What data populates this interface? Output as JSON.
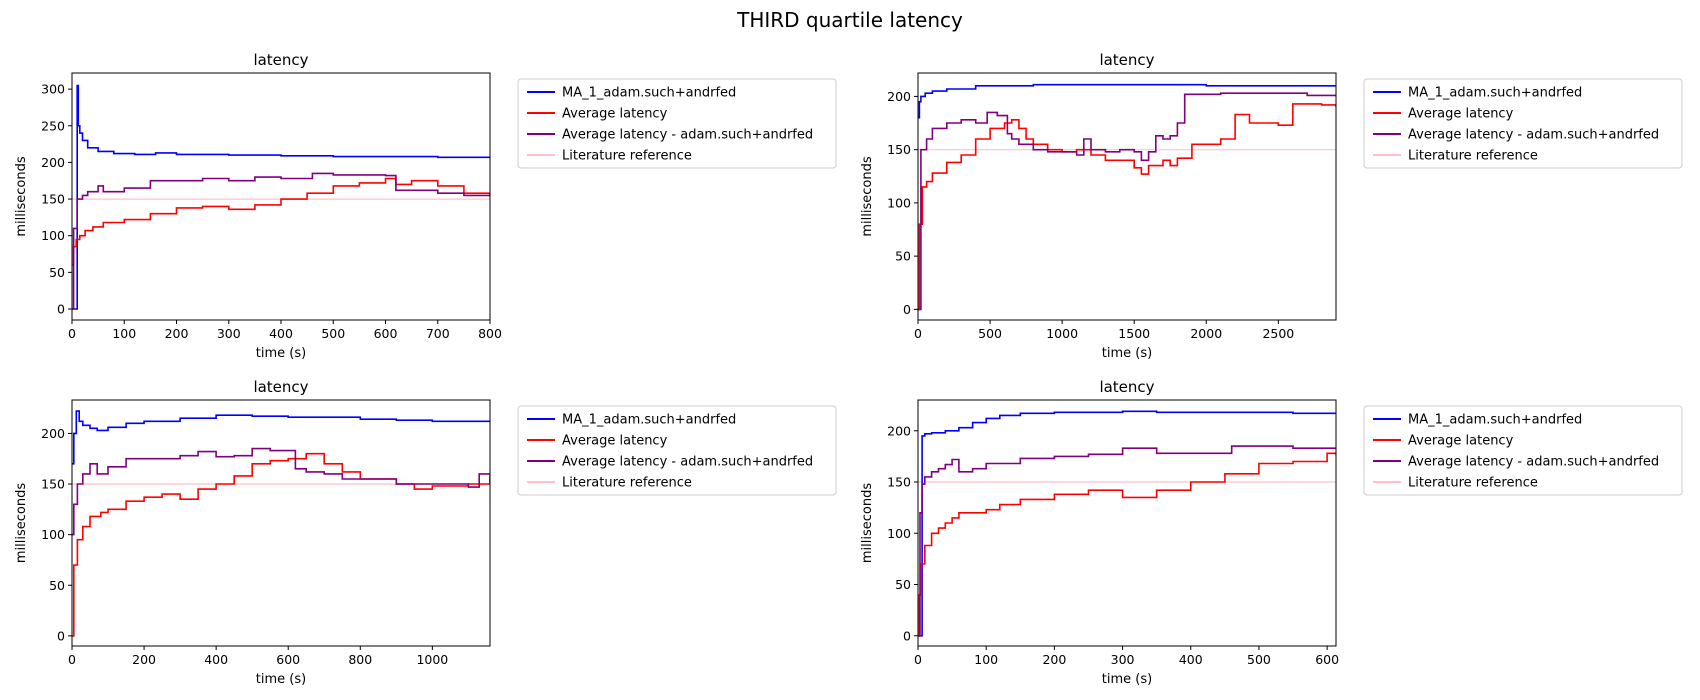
{
  "figure": {
    "title": "THIRD quartile latency"
  },
  "legend_entries": [
    {
      "label": "MA_1_adam.such+andrfed",
      "color": "#0000ff"
    },
    {
      "label": "Average latency",
      "color": "#ff0000"
    },
    {
      "label": "Average latency - adam.such+andrfed",
      "color": "#800080"
    },
    {
      "label": "Literature reference",
      "color": "#ffc0cb"
    }
  ],
  "chart_data": [
    {
      "type": "line",
      "title": "latency",
      "xlabel": "time (s)",
      "ylabel": "milliseconds",
      "xlim": [
        0,
        800
      ],
      "ylim": [
        -15,
        322
      ],
      "xticks": [
        0,
        100,
        200,
        300,
        400,
        500,
        600,
        700,
        800
      ],
      "yticks": [
        0,
        50,
        100,
        150,
        200,
        250,
        300
      ],
      "legend": "outside-right",
      "series": [
        {
          "name": "MA_1_adam.such+andrfed",
          "color": "#0000ff",
          "x": [
            0,
            8,
            10,
            12,
            15,
            20,
            30,
            50,
            80,
            120,
            160,
            200,
            300,
            400,
            500,
            600,
            700,
            800
          ],
          "y": [
            0,
            0,
            305,
            250,
            240,
            230,
            220,
            215,
            212,
            211,
            213,
            211,
            210,
            209,
            208,
            208,
            207,
            207
          ]
        },
        {
          "name": "Average latency",
          "color": "#ff0000",
          "x": [
            0,
            3,
            8,
            15,
            25,
            40,
            60,
            100,
            150,
            200,
            250,
            300,
            350,
            400,
            450,
            500,
            550,
            600,
            620,
            650,
            700,
            750,
            800
          ],
          "y": [
            60,
            85,
            95,
            100,
            107,
            112,
            118,
            122,
            130,
            138,
            140,
            136,
            142,
            150,
            158,
            168,
            172,
            178,
            170,
            175,
            168,
            158,
            155
          ]
        },
        {
          "name": "Average latency - adam.such+andrfed",
          "color": "#800080",
          "x": [
            0,
            3,
            10,
            20,
            30,
            50,
            60,
            100,
            150,
            200,
            250,
            300,
            350,
            400,
            460,
            500,
            550,
            600,
            620,
            650,
            700,
            750,
            800
          ],
          "y": [
            0,
            110,
            150,
            155,
            160,
            168,
            160,
            165,
            175,
            175,
            178,
            175,
            180,
            178,
            185,
            183,
            183,
            182,
            162,
            162,
            158,
            155,
            153
          ]
        },
        {
          "name": "Literature reference",
          "color": "#ffc0cb",
          "x": [
            0,
            800
          ],
          "y": [
            150,
            150
          ]
        }
      ]
    },
    {
      "type": "line",
      "title": "latency",
      "xlabel": "time (s)",
      "ylabel": "milliseconds",
      "xlim": [
        0,
        2900
      ],
      "ylim": [
        -10,
        222
      ],
      "xticks": [
        0,
        500,
        1000,
        1500,
        2000,
        2500
      ],
      "yticks": [
        0,
        50,
        100,
        150,
        200
      ],
      "legend": "outside-right",
      "series": [
        {
          "name": "MA_1_adam.such+andrfed",
          "color": "#0000ff",
          "x": [
            0,
            10,
            20,
            50,
            100,
            200,
            400,
            600,
            800,
            1000,
            1500,
            1800,
            2000,
            2500,
            2900
          ],
          "y": [
            180,
            195,
            200,
            203,
            205,
            207,
            210,
            210,
            211,
            211,
            211,
            211,
            210,
            210,
            209
          ]
        },
        {
          "name": "Average latency",
          "color": "#ff0000",
          "x": [
            0,
            10,
            30,
            60,
            100,
            200,
            300,
            400,
            500,
            600,
            650,
            700,
            750,
            800,
            900,
            1000,
            1100,
            1200,
            1300,
            1400,
            1500,
            1550,
            1600,
            1700,
            1750,
            1800,
            1900,
            2000,
            2050,
            2100,
            2200,
            2300,
            2400,
            2500,
            2600,
            2700,
            2800,
            2900
          ],
          "y": [
            0,
            80,
            115,
            120,
            128,
            138,
            145,
            160,
            170,
            175,
            178,
            170,
            160,
            155,
            150,
            148,
            150,
            145,
            140,
            140,
            133,
            127,
            135,
            140,
            135,
            142,
            155,
            155,
            155,
            160,
            183,
            175,
            175,
            173,
            193,
            193,
            192,
            190
          ]
        },
        {
          "name": "Average latency - adam.such+andrfed",
          "color": "#800080",
          "x": [
            0,
            20,
            60,
            100,
            200,
            300,
            400,
            480,
            550,
            620,
            650,
            700,
            800,
            900,
            1000,
            1100,
            1150,
            1200,
            1300,
            1400,
            1500,
            1550,
            1600,
            1650,
            1700,
            1750,
            1800,
            1850,
            2000,
            2100,
            2200,
            2300,
            2500,
            2700,
            2900
          ],
          "y": [
            0,
            150,
            160,
            170,
            175,
            178,
            175,
            185,
            182,
            165,
            160,
            155,
            150,
            148,
            148,
            145,
            160,
            150,
            148,
            150,
            148,
            140,
            148,
            163,
            160,
            163,
            175,
            202,
            202,
            203,
            203,
            203,
            203,
            201,
            200
          ]
        },
        {
          "name": "Literature reference",
          "color": "#ffc0cb",
          "x": [
            0,
            2900
          ],
          "y": [
            150,
            150
          ]
        }
      ]
    },
    {
      "type": "line",
      "title": "latency",
      "xlabel": "time (s)",
      "ylabel": "milliseconds",
      "xlim": [
        0,
        1160
      ],
      "ylim": [
        -10,
        233
      ],
      "xticks": [
        0,
        200,
        400,
        600,
        800,
        1000
      ],
      "yticks": [
        0,
        50,
        100,
        150,
        200
      ],
      "legend": "outside-right",
      "series": [
        {
          "name": "MA_1_adam.such+andrfed",
          "color": "#0000ff",
          "x": [
            0,
            5,
            12,
            20,
            30,
            50,
            70,
            100,
            150,
            200,
            300,
            400,
            500,
            600,
            700,
            800,
            900,
            1000,
            1160
          ],
          "y": [
            170,
            200,
            222,
            212,
            208,
            205,
            203,
            206,
            210,
            212,
            215,
            218,
            217,
            216,
            216,
            214,
            213,
            212,
            212
          ]
        },
        {
          "name": "Average latency",
          "color": "#ff0000",
          "x": [
            0,
            5,
            15,
            30,
            50,
            80,
            100,
            150,
            200,
            250,
            300,
            350,
            400,
            450,
            500,
            550,
            600,
            650,
            700,
            750,
            800,
            900,
            950,
            1000,
            1100,
            1160
          ],
          "y": [
            0,
            70,
            95,
            108,
            118,
            122,
            125,
            133,
            137,
            140,
            135,
            145,
            150,
            158,
            170,
            173,
            175,
            180,
            170,
            162,
            155,
            150,
            145,
            148,
            150,
            155
          ]
        },
        {
          "name": "Average latency - adam.such+andrfed",
          "color": "#800080",
          "x": [
            0,
            5,
            15,
            30,
            50,
            70,
            100,
            150,
            200,
            300,
            350,
            400,
            450,
            500,
            550,
            600,
            620,
            650,
            700,
            750,
            800,
            900,
            1000,
            1100,
            1130,
            1160
          ],
          "y": [
            100,
            130,
            150,
            160,
            170,
            160,
            167,
            175,
            175,
            178,
            182,
            177,
            178,
            185,
            183,
            183,
            165,
            162,
            160,
            155,
            155,
            150,
            150,
            147,
            160,
            150
          ]
        },
        {
          "name": "Literature reference",
          "color": "#ffc0cb",
          "x": [
            0,
            1160
          ],
          "y": [
            150,
            150
          ]
        }
      ]
    },
    {
      "type": "line",
      "title": "latency",
      "xlabel": "time (s)",
      "ylabel": "milliseconds",
      "xlim": [
        0,
        613
      ],
      "ylim": [
        -10,
        230
      ],
      "xticks": [
        0,
        100,
        200,
        300,
        400,
        500,
        600
      ],
      "yticks": [
        0,
        50,
        100,
        150,
        200
      ],
      "legend": "outside-right",
      "series": [
        {
          "name": "MA_1_adam.such+andrfed",
          "color": "#0000ff",
          "x": [
            0,
            4,
            6,
            10,
            20,
            40,
            60,
            80,
            100,
            120,
            150,
            200,
            250,
            300,
            350,
            400,
            450,
            500,
            550,
            613
          ],
          "y": [
            0,
            0,
            195,
            197,
            198,
            200,
            203,
            208,
            212,
            215,
            217,
            218,
            218,
            219,
            218,
            218,
            218,
            218,
            217,
            217
          ]
        },
        {
          "name": "Average latency",
          "color": "#ff0000",
          "x": [
            0,
            2,
            5,
            10,
            20,
            30,
            40,
            50,
            60,
            80,
            100,
            120,
            150,
            200,
            250,
            300,
            350,
            400,
            450,
            500,
            550,
            600,
            613
          ],
          "y": [
            0,
            40,
            70,
            88,
            100,
            105,
            110,
            115,
            120,
            120,
            123,
            128,
            133,
            138,
            142,
            135,
            142,
            150,
            158,
            168,
            170,
            178,
            176
          ]
        },
        {
          "name": "Average latency - adam.such+andrfed",
          "color": "#800080",
          "x": [
            0,
            3,
            6,
            10,
            20,
            30,
            40,
            50,
            60,
            80,
            100,
            150,
            200,
            250,
            300,
            350,
            400,
            450,
            460,
            500,
            550,
            613
          ],
          "y": [
            0,
            120,
            148,
            155,
            160,
            163,
            167,
            172,
            160,
            163,
            168,
            173,
            175,
            177,
            183,
            178,
            178,
            178,
            185,
            185,
            183,
            183
          ]
        },
        {
          "name": "Literature reference",
          "color": "#ffc0cb",
          "x": [
            0,
            613
          ],
          "y": [
            150,
            150
          ]
        }
      ]
    }
  ]
}
